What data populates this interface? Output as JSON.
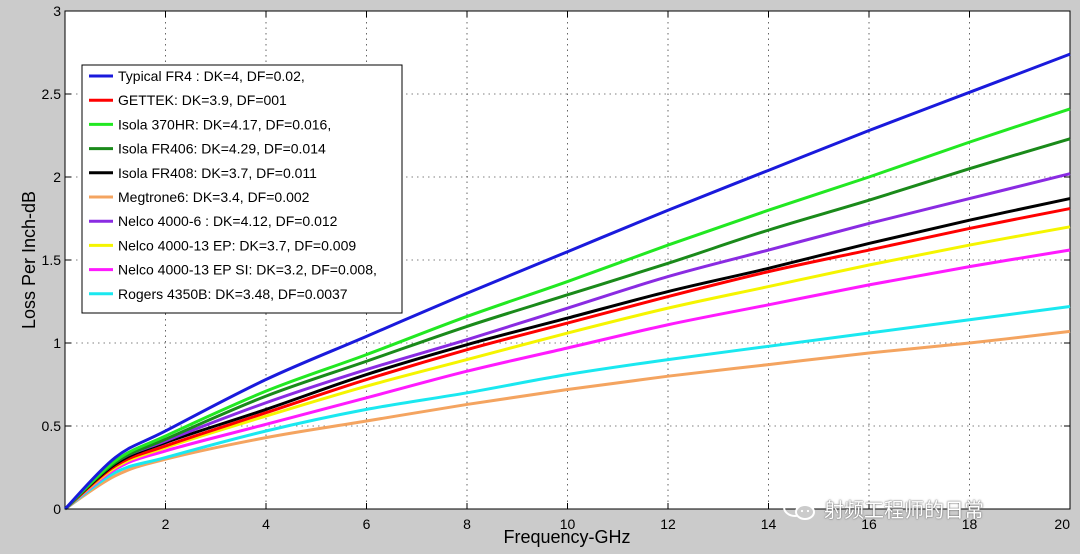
{
  "chart_data": {
    "type": "line",
    "xlabel": "Frequency-GHz",
    "ylabel": "Loss Per Inch-dB",
    "xlim": [
      0,
      20
    ],
    "ylim": [
      0,
      3
    ],
    "xticks": [
      2,
      4,
      6,
      8,
      10,
      12,
      14,
      16,
      18,
      20
    ],
    "yticks": [
      0,
      0.5,
      1,
      1.5,
      2,
      2.5,
      3
    ],
    "grid": true,
    "legend_position": "top-left",
    "x": [
      0,
      1,
      2,
      4,
      6,
      8,
      10,
      12,
      14,
      16,
      18,
      20
    ],
    "series": [
      {
        "name": "Typical FR4 : DK=4, DF=0.02,",
        "color": "#1a1adc",
        "values": [
          0,
          0.31,
          0.47,
          0.78,
          1.04,
          1.3,
          1.55,
          1.8,
          2.04,
          2.28,
          2.51,
          2.74
        ]
      },
      {
        "name": "GETTEK: DK=3.9, DF=001",
        "color": "#ff0000",
        "values": [
          0,
          0.26,
          0.38,
          0.58,
          0.78,
          0.96,
          1.12,
          1.28,
          1.43,
          1.56,
          1.69,
          1.81
        ]
      },
      {
        "name": "Isola 370HR: DK=4.17, DF=0.016,",
        "color": "#22e822",
        "values": [
          0,
          0.29,
          0.44,
          0.71,
          0.93,
          1.16,
          1.37,
          1.59,
          1.8,
          2.0,
          2.21,
          2.41
        ]
      },
      {
        "name": "Isola FR406: DK=4.29, DF=0.014",
        "color": "#1a8a1a",
        "values": [
          0,
          0.28,
          0.42,
          0.68,
          0.89,
          1.1,
          1.29,
          1.48,
          1.68,
          1.86,
          2.05,
          2.23
        ]
      },
      {
        "name": "Isola FR408: DK=3.7, DF=0.011",
        "color": "#000000",
        "values": [
          0,
          0.27,
          0.4,
          0.6,
          0.81,
          0.99,
          1.15,
          1.31,
          1.45,
          1.6,
          1.74,
          1.87
        ]
      },
      {
        "name": "Megtrone6: DK=3.4, DF=0.002",
        "color": "#f4a460",
        "values": [
          0,
          0.2,
          0.3,
          0.43,
          0.53,
          0.63,
          0.72,
          0.8,
          0.87,
          0.94,
          1.0,
          1.07
        ]
      },
      {
        "name": "Nelco 4000-6 : DK=4.12, DF=0.012",
        "color": "#8a2be2",
        "values": [
          0,
          0.28,
          0.41,
          0.64,
          0.84,
          1.02,
          1.21,
          1.4,
          1.56,
          1.72,
          1.87,
          2.02
        ]
      },
      {
        "name": "Nelco 4000-13 EP: DK=3.7, DF=0.009",
        "color": "#f5f500",
        "values": [
          0,
          0.25,
          0.37,
          0.56,
          0.74,
          0.9,
          1.06,
          1.21,
          1.34,
          1.47,
          1.59,
          1.7
        ]
      },
      {
        "name": "Nelco 4000-13 EP SI: DK=3.2, DF=0.008,",
        "color": "#ff1aff",
        "values": [
          0,
          0.24,
          0.35,
          0.51,
          0.67,
          0.83,
          0.97,
          1.11,
          1.23,
          1.35,
          1.46,
          1.56
        ]
      },
      {
        "name": "Rogers 4350B: DK=3.48, DF=0.0037",
        "color": "#1ae8f0",
        "values": [
          0,
          0.22,
          0.31,
          0.47,
          0.6,
          0.7,
          0.81,
          0.9,
          0.98,
          1.06,
          1.14,
          1.22
        ]
      }
    ]
  },
  "watermark": {
    "text": "射频工程师的日常",
    "icon": "wechat-icon"
  },
  "colors": {
    "figure_background": "#cbcbcb",
    "axes_background": "#ffffff",
    "grid": "#000000"
  }
}
